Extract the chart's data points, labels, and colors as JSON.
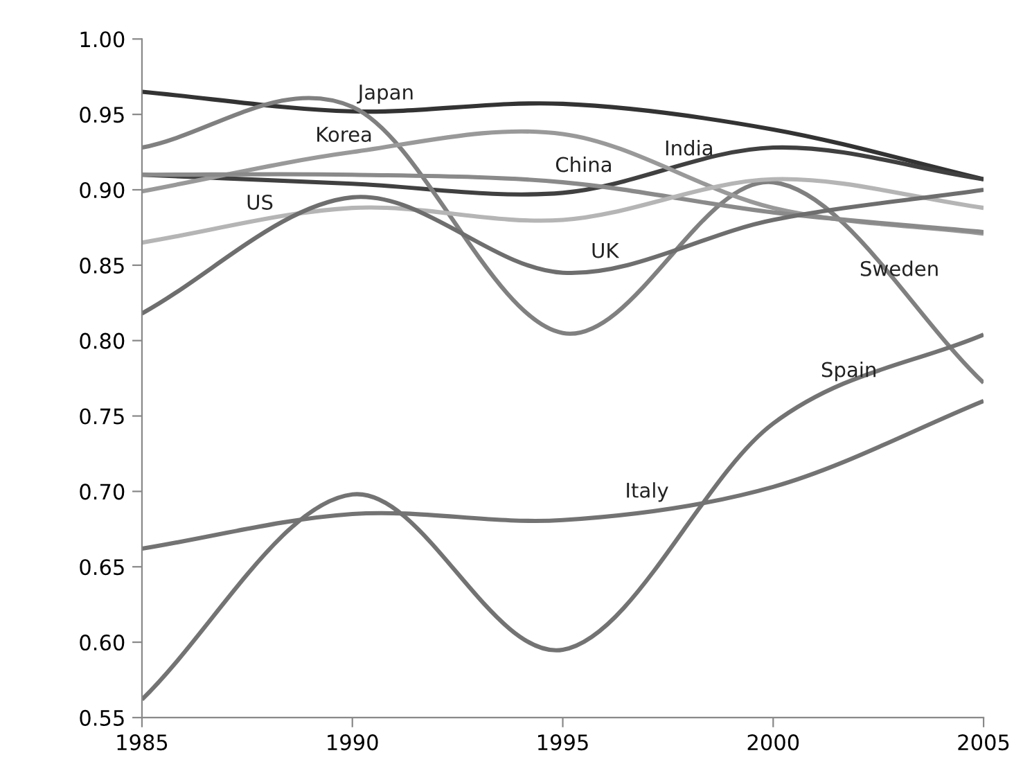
{
  "chart_data": {
    "type": "line",
    "x": [
      1985,
      1990,
      1995,
      2000,
      2005
    ],
    "series": [
      {
        "color": "#333333",
        "values": [
          0.965,
          0.952,
          0.957,
          0.94,
          0.907
        ]
      },
      {
        "color": "#404040",
        "values": [
          0.91,
          0.904,
          0.898,
          0.928,
          0.907
        ]
      },
      {
        "color": "#808080",
        "values": [
          0.928,
          0.955,
          0.805,
          0.905,
          0.772
        ]
      },
      {
        "color": "#999999",
        "values": [
          0.899,
          0.925,
          0.937,
          0.888,
          0.871
        ]
      },
      {
        "color": "#8a8a8a",
        "values": [
          0.91,
          0.91,
          0.905,
          0.885,
          0.872
        ]
      },
      {
        "color": "#b5b5b5",
        "values": [
          0.865,
          0.888,
          0.88,
          0.907,
          0.888
        ]
      },
      {
        "color": "#6e6e6e",
        "values": [
          0.818,
          0.895,
          0.845,
          0.88,
          0.9
        ]
      },
      {
        "color": "#737373",
        "values": [
          0.562,
          0.698,
          0.595,
          0.745,
          0.804
        ]
      },
      {
        "color": "#737373",
        "values": [
          0.662,
          0.685,
          0.681,
          0.703,
          0.76
        ]
      }
    ],
    "annotations": [
      {
        "text": "Japan",
        "x": 1990.8,
        "y": 0.952
      },
      {
        "text": "Korea",
        "x": 1989.8,
        "y": 0.924
      },
      {
        "text": "China",
        "x": 1995.5,
        "y": 0.904
      },
      {
        "text": "India",
        "x": 1998,
        "y": 0.915
      },
      {
        "text": "US",
        "x": 1987.8,
        "y": 0.879
      },
      {
        "text": "UK",
        "x": 1996,
        "y": 0.847
      },
      {
        "text": "Sweden",
        "x": 2003,
        "y": 0.835
      },
      {
        "text": "Spain",
        "x": 2001.8,
        "y": 0.768
      },
      {
        "text": "Italy",
        "x": 1997,
        "y": 0.688
      }
    ],
    "xlim": [
      1985,
      2005
    ],
    "xticks": [
      1985,
      1990,
      1995,
      2000,
      2005
    ],
    "ylim": [
      0.55,
      1.0
    ],
    "yticks": [
      0.55,
      {
        "value": 0.6,
        "label": "0.60"
      },
      0.65,
      {
        "value": 0.7,
        "label": "0.70"
      },
      0.75,
      {
        "value": 0.8,
        "label": "0.80"
      },
      0.85,
      {
        "value": 0.9,
        "label": "0.90"
      },
      0.95,
      {
        "value": 1.0,
        "label": "1.00"
      }
    ],
    "grid": false,
    "legend": false,
    "marker": "none",
    "line_style": "solid"
  }
}
